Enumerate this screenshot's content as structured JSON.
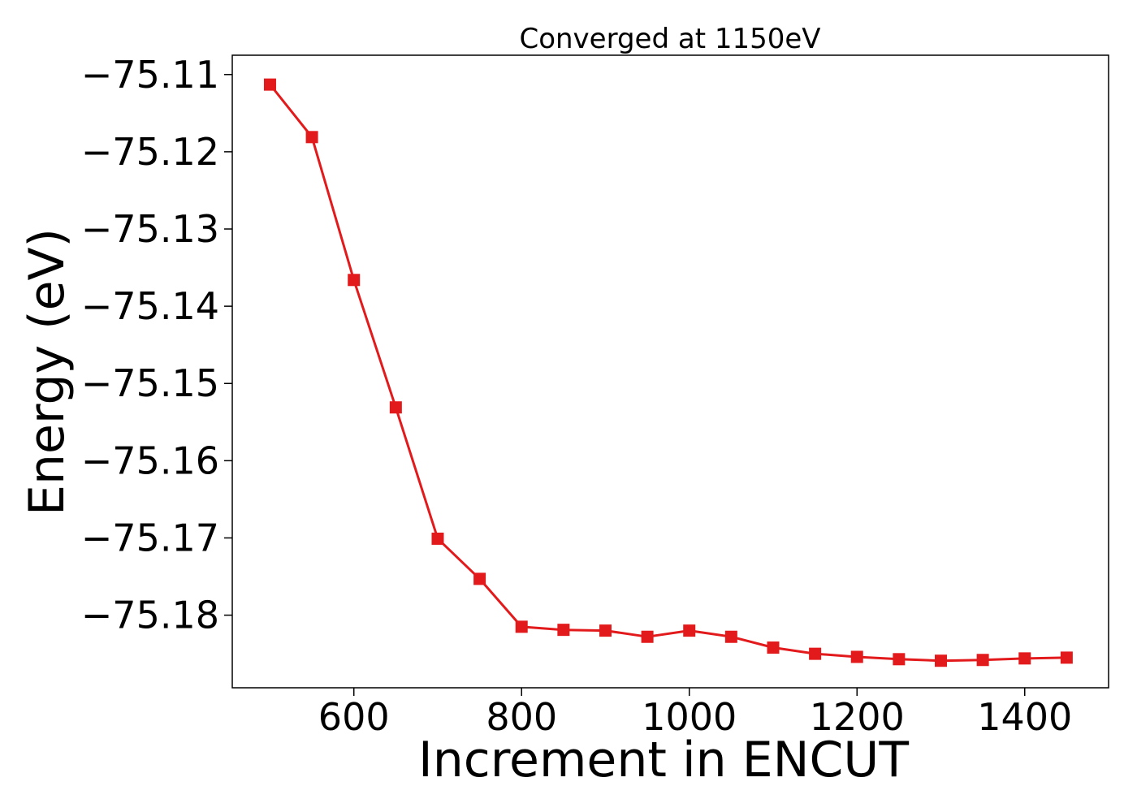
{
  "chart_data": {
    "type": "line",
    "title": "Converged at 1150eV",
    "xlabel": "Increment in ENCUT",
    "ylabel": "Energy (eV)",
    "xlim": [
      455,
      1500
    ],
    "ylim": [
      -75.1894,
      -75.1075
    ],
    "x_ticks": [
      600,
      800,
      1000,
      1200,
      1400
    ],
    "x_tick_labels": [
      "600",
      "800",
      "1000",
      "1200",
      "1400"
    ],
    "y_ticks": [
      -75.11,
      -75.12,
      -75.13,
      -75.14,
      -75.15,
      -75.16,
      -75.17,
      -75.18
    ],
    "y_tick_labels": [
      "−75.11",
      "−75.12",
      "−75.13",
      "−75.14",
      "−75.15",
      "−75.16",
      "−75.17",
      "−75.18"
    ],
    "grid": false,
    "legend": "none",
    "series": [
      {
        "color": "#e31a1c",
        "marker": "square",
        "x": [
          500,
          550,
          600,
          650,
          700,
          750,
          800,
          850,
          900,
          950,
          1000,
          1050,
          1100,
          1150,
          1200,
          1250,
          1300,
          1350,
          1400,
          1450
        ],
        "y": [
          -75.1113,
          -75.1181,
          -75.1366,
          -75.1531,
          -75.1701,
          -75.1753,
          -75.1815,
          -75.1819,
          -75.182,
          -75.1828,
          -75.182,
          -75.1828,
          -75.1842,
          -75.185,
          -75.1854,
          -75.1857,
          -75.1859,
          -75.1858,
          -75.1856,
          -75.1855
        ]
      }
    ]
  }
}
